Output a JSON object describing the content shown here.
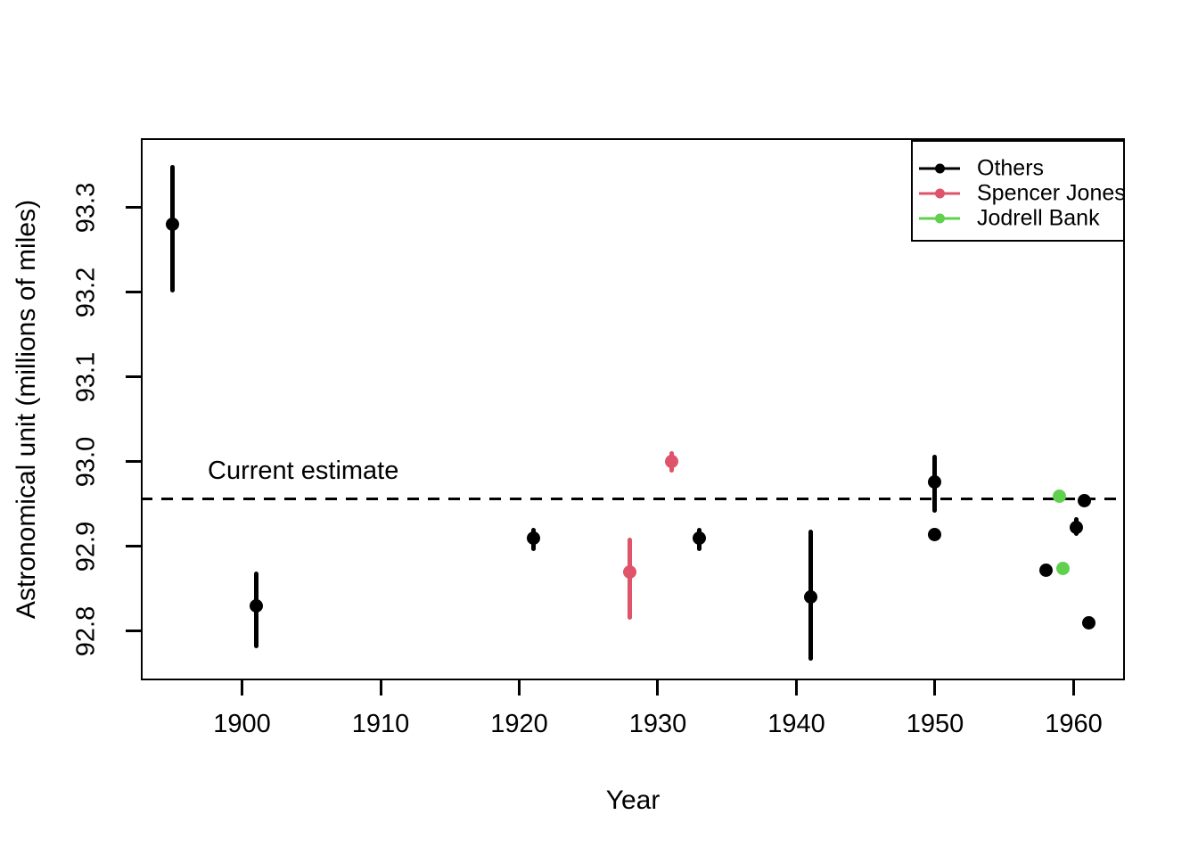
{
  "chart_data": {
    "type": "scatter",
    "title": "",
    "xlabel": "Year",
    "ylabel": "Astronomical unit (millions of miles)",
    "xlim": [
      1892.7,
      1963.7
    ],
    "ylim": [
      92.742,
      93.382
    ],
    "grid": false,
    "x_ticks": [
      1900,
      1910,
      1920,
      1930,
      1940,
      1950,
      1960
    ],
    "x_tick_labels": [
      "1900",
      "1910",
      "1920",
      "1930",
      "1940",
      "1950",
      "1960"
    ],
    "y_ticks": [
      92.8,
      92.9,
      93.0,
      93.1,
      93.2,
      93.3
    ],
    "y_tick_labels": [
      "92.8",
      "92.9",
      "93.0",
      "93.1",
      "93.2",
      "93.3"
    ],
    "reference_line": {
      "value": 92.956,
      "label": "Current estimate",
      "style": "dashed",
      "color": "#000000"
    },
    "legend": {
      "position": "top-right",
      "entries": [
        {
          "label": "Others",
          "color": "#000000"
        },
        {
          "label": "Spencer Jones",
          "color": "#DF536B"
        },
        {
          "label": "Jodrell Bank",
          "color": "#61D04F"
        }
      ]
    },
    "series": [
      {
        "name": "Others",
        "color": "#000000",
        "points": [
          {
            "year": 1895,
            "value": 93.28,
            "low": 93.2,
            "high": 93.35
          },
          {
            "year": 1901,
            "value": 92.83,
            "low": 92.78,
            "high": 92.87
          },
          {
            "year": 1921,
            "value": 92.91,
            "low": 92.895,
            "high": 92.922
          },
          {
            "year": 1933,
            "value": 92.91,
            "low": 92.895,
            "high": 92.922
          },
          {
            "year": 1941,
            "value": 92.84,
            "low": 92.765,
            "high": 92.92
          },
          {
            "year": 1950,
            "value": 92.976,
            "low": 92.94,
            "high": 93.008
          },
          {
            "year": 1950,
            "value": 92.914
          },
          {
            "year": 1958,
            "value": 92.872
          },
          {
            "year": 1960.2,
            "value": 92.923,
            "low": 92.912,
            "high": 92.935
          },
          {
            "year": 1960.8,
            "value": 92.954
          },
          {
            "year": 1961.1,
            "value": 92.81
          }
        ]
      },
      {
        "name": "Spencer Jones",
        "color": "#DF536B",
        "points": [
          {
            "year": 1928,
            "value": 92.87,
            "low": 92.814,
            "high": 92.91
          },
          {
            "year": 1931,
            "value": 93.0,
            "low": 92.987,
            "high": 93.013
          }
        ]
      },
      {
        "name": "Jodrell Bank",
        "color": "#61D04F",
        "points": [
          {
            "year": 1959,
            "value": 92.959
          },
          {
            "year": 1959.2,
            "value": 92.874
          }
        ]
      }
    ]
  }
}
